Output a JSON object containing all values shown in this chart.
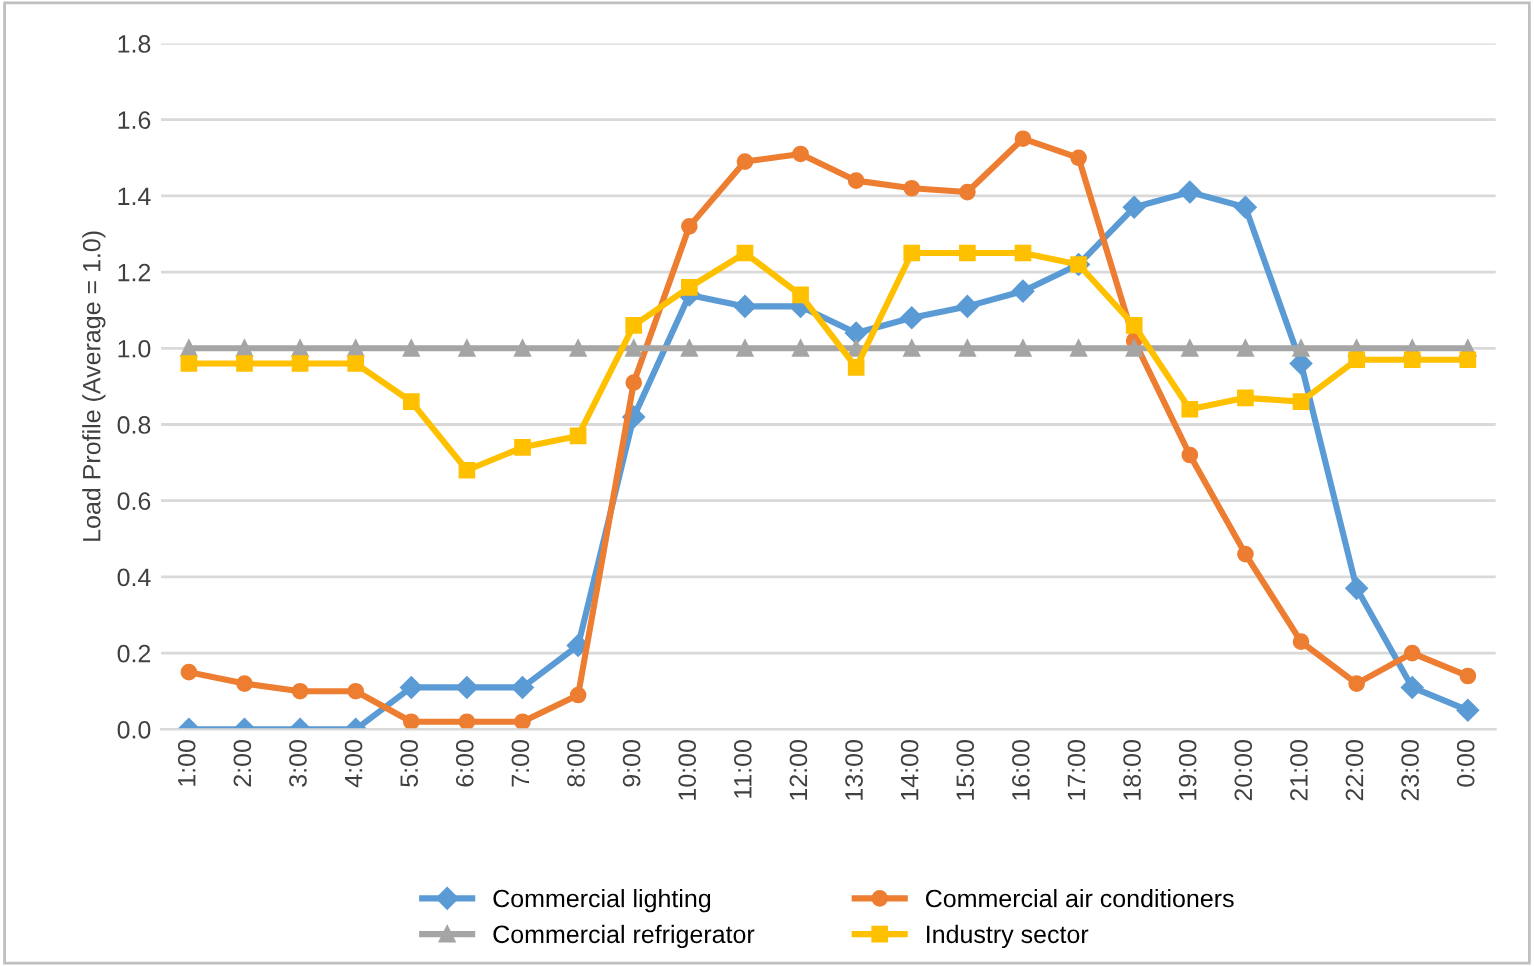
{
  "chart_data": {
    "type": "line",
    "ylabel": "Load Profile (Average = 1.0)",
    "categories": [
      "1:00",
      "2:00",
      "3:00",
      "4:00",
      "5:00",
      "6:00",
      "7:00",
      "8:00",
      "9:00",
      "10:00",
      "11:00",
      "12:00",
      "13:00",
      "14:00",
      "15:00",
      "16:00",
      "17:00",
      "18:00",
      "19:00",
      "20:00",
      "21:00",
      "22:00",
      "23:00",
      "0:00"
    ],
    "series": [
      {
        "name": "Commercial lighting",
        "color": "#5b9bd5",
        "marker": "diamond",
        "values": [
          0,
          0,
          0,
          0,
          0.11,
          0.11,
          0.11,
          0.22,
          0.82,
          1.14,
          1.11,
          1.11,
          1.04,
          1.08,
          1.11,
          1.15,
          1.22,
          1.37,
          1.41,
          1.37,
          0.96,
          0.37,
          0.11,
          0.05
        ]
      },
      {
        "name": "Commercial air conditioners",
        "color": "#ed7d31",
        "marker": "circle",
        "values": [
          0.15,
          0.12,
          0.1,
          0.1,
          0.02,
          0.02,
          0.02,
          0.09,
          0.91,
          1.32,
          1.49,
          1.51,
          1.44,
          1.42,
          1.41,
          1.55,
          1.5,
          1.02,
          0.72,
          0.46,
          0.23,
          0.12,
          0.2,
          0.14
        ]
      },
      {
        "name": "Commercial refrigerator",
        "color": "#a5a5a5",
        "marker": "triangle",
        "values": [
          1,
          1,
          1,
          1,
          1,
          1,
          1,
          1,
          1,
          1,
          1,
          1,
          1,
          1,
          1,
          1,
          1,
          1,
          1,
          1,
          1,
          1,
          1,
          1
        ]
      },
      {
        "name": "Industry sector",
        "color": "#ffc000",
        "marker": "square",
        "values": [
          0.96,
          0.96,
          0.96,
          0.96,
          0.86,
          0.68,
          0.74,
          0.77,
          1.06,
          1.16,
          1.25,
          1.14,
          0.95,
          1.25,
          1.25,
          1.25,
          1.22,
          1.06,
          0.84,
          0.87,
          0.86,
          0.97,
          0.97,
          0.97
        ]
      }
    ],
    "ylim": [
      0,
      1.8
    ],
    "yticks": [
      {
        "value": 0,
        "label": "0.0"
      },
      {
        "value": 0.2,
        "label": "0.2"
      },
      {
        "value": 0.4,
        "label": "0.4"
      },
      {
        "value": 0.6,
        "label": "0.6"
      },
      {
        "value": 0.8,
        "label": "0.8"
      },
      {
        "value": 1.0,
        "label": "1.0"
      },
      {
        "value": 1.2,
        "label": "1.2"
      },
      {
        "value": 1.4,
        "label": "1.4"
      },
      {
        "value": 1.6,
        "label": "1.6"
      },
      {
        "value": 1.8,
        "label": "1.8"
      }
    ],
    "grid": "y",
    "legend": "bottom",
    "line_style": "solid"
  }
}
